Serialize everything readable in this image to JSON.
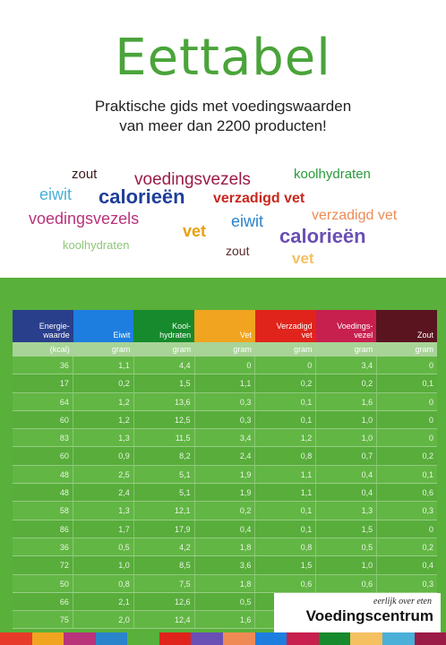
{
  "cover": {
    "title": "Eettabel",
    "subtitle_line1": "Praktische gids met voedingswaarden",
    "subtitle_line2": "van meer dan 2200 producten!"
  },
  "word_cloud": [
    {
      "text": "zout",
      "color": "#3a1a1a"
    },
    {
      "text": "voedingsvezels",
      "color": "#9b1b47"
    },
    {
      "text": "koolhydraten",
      "color": "#2a9a3a"
    },
    {
      "text": "eiwit",
      "color": "#4ab0d8"
    },
    {
      "text": "calorieën",
      "color": "#1f3f9a"
    },
    {
      "text": "verzadigd vet",
      "color": "#c8281e"
    },
    {
      "text": "voedingsvezels",
      "color": "#b8337a"
    },
    {
      "text": "eiwit",
      "color": "#2a84cc"
    },
    {
      "text": "verzadigd vet",
      "color": "#f08a55"
    },
    {
      "text": "vet",
      "color": "#e8a010"
    },
    {
      "text": "calorieën",
      "color": "#6a4fb4"
    },
    {
      "text": "koolhydraten",
      "color": "#8fc67a"
    },
    {
      "text": "zout",
      "color": "#5a2a2a"
    },
    {
      "text": "vet",
      "color": "#f4c060"
    }
  ],
  "table": {
    "headers": [
      {
        "label": "Energie-\nwaarde",
        "color": "#2a3f8c"
      },
      {
        "label": "Eiwit",
        "color": "#1e7ee0"
      },
      {
        "label": "Kool-\nhydraten",
        "color": "#168a2c"
      },
      {
        "label": "Vet",
        "color": "#f0a420"
      },
      {
        "label": "Verzadigd\nvet",
        "color": "#e0241c"
      },
      {
        "label": "Voedings-\nvezel",
        "color": "#c8204e"
      },
      {
        "label": "Zout",
        "color": "#5a1420"
      }
    ],
    "units": [
      "(kcal)",
      "gram",
      "gram",
      "gram",
      "gram",
      "gram",
      "gram"
    ],
    "rows": [
      [
        "36",
        "1,1",
        "4,4",
        "0",
        "0",
        "3,4",
        "0"
      ],
      [
        "17",
        "0,2",
        "1,5",
        "1,1",
        "0,2",
        "0,2",
        "0,1"
      ],
      [
        "64",
        "1,2",
        "13,6",
        "0,3",
        "0,1",
        "1,6",
        "0"
      ],
      [
        "60",
        "1,2",
        "12,5",
        "0,3",
        "0,1",
        "1,0",
        "0"
      ],
      [
        "83",
        "1,3",
        "11,5",
        "3,4",
        "1,2",
        "1,0",
        "0"
      ],
      [
        "60",
        "0,9",
        "8,2",
        "2,4",
        "0,8",
        "0,7",
        "0,2"
      ],
      [
        "48",
        "2,5",
        "5,1",
        "1,9",
        "1,1",
        "0,4",
        "0,1"
      ],
      [
        "48",
        "2,4",
        "5,1",
        "1,9",
        "1,1",
        "0,4",
        "0,6"
      ],
      [
        "58",
        "1,3",
        "12,1",
        "0,2",
        "0,1",
        "1,3",
        "0,3"
      ],
      [
        "86",
        "1,7",
        "17,9",
        "0,4",
        "0,1",
        "1,5",
        "0"
      ],
      [
        "36",
        "0,5",
        "4,2",
        "1,8",
        "0,8",
        "0,5",
        "0,2"
      ],
      [
        "72",
        "1,0",
        "8,5",
        "3,6",
        "1,5",
        "1,0",
        "0,4"
      ],
      [
        "50",
        "0,8",
        "7,5",
        "1,8",
        "0,6",
        "0,6",
        "0,3"
      ],
      [
        "66",
        "2,1",
        "12,6",
        "0,5",
        "",
        "",
        ""
      ],
      [
        "75",
        "2,0",
        "12,4",
        "1,6",
        "",
        "",
        ""
      ]
    ]
  },
  "publisher": {
    "tagline": "eerlijk over eten",
    "name": "Voedingscentrum"
  },
  "bottom_strip_colors": [
    "#e83a2a",
    "#f0a420",
    "#b8337a",
    "#2a84cc",
    "#59b03a",
    "#e0241c",
    "#6a4fb4",
    "#f08a55",
    "#1e7ee0",
    "#c8204e",
    "#168a2c",
    "#f4c060",
    "#4ab0d8",
    "#9b1b47"
  ]
}
